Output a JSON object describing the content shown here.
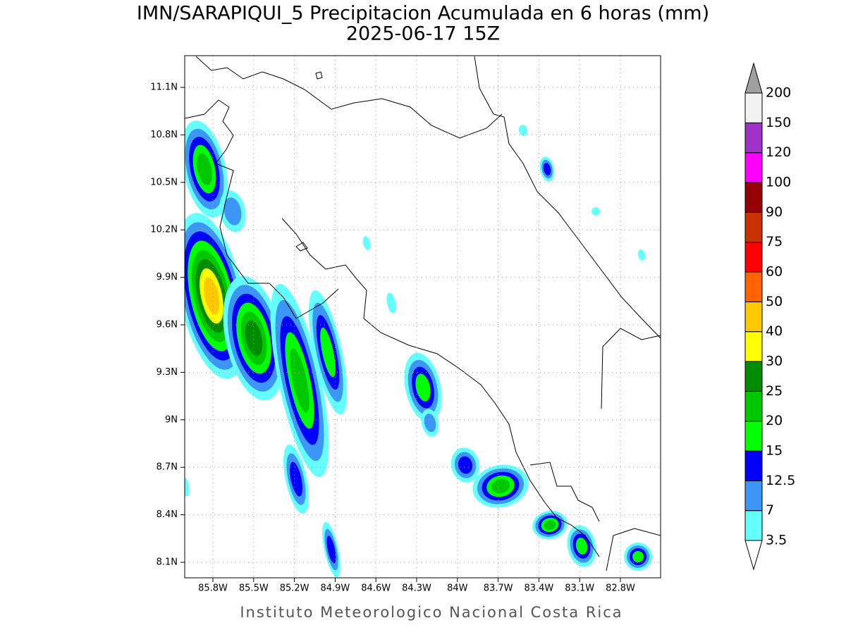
{
  "title": "IMN/SARAPIQUI_5 Precipitacion Acumulada en 6 horas (mm)",
  "subtitle": "2025-06-17 15Z",
  "lat_labels": [
    "11.1N",
    "10.8N",
    "10.5N",
    "10.2N",
    "9.9N",
    "9.6N",
    "9.3N",
    "9N",
    "8.7N",
    "8.4N",
    "8.1N"
  ],
  "lon_labels": [
    "85.8W",
    "85.5W",
    "85.2W",
    "84.9W",
    "84.6W",
    "84.3W",
    "84W",
    "83.7W",
    "83.4W",
    "83.1W",
    "82.8W"
  ],
  "legend": {
    "labels": [
      "3.5",
      "7",
      "12.5",
      "15",
      "20",
      "25",
      "30",
      "40",
      "50",
      "60",
      "75",
      "90",
      "100",
      "120",
      "150",
      "200"
    ],
    "colors": [
      "#66ffff",
      "#3c96f5",
      "#0000ff",
      "#00ff00",
      "#00c800",
      "#008c00",
      "#ffff00",
      "#ffc800",
      "#ff6400",
      "#ff0000",
      "#c83200",
      "#960000",
      "#ff00ff",
      "#a032c8",
      "#f2f2f2"
    ],
    "under_color": "#ffffff",
    "over_color": "#a0a0a0"
  },
  "footer": "Instituto Meteorologico Nacional Costa Rica"
}
